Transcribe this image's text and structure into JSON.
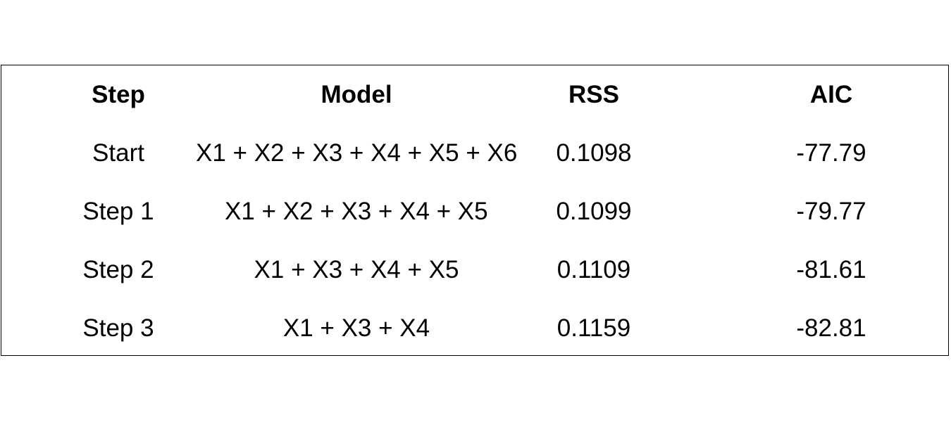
{
  "chart_data": {
    "type": "table",
    "columns": [
      "Step",
      "Model",
      "RSS",
      "AIC"
    ],
    "rows": [
      {
        "step": "Start",
        "model": "X1 + X2 + X3 + X4 + X5 + X6",
        "rss": "0.1098",
        "aic": "-77.79"
      },
      {
        "step": "Step 1",
        "model": "X1 + X2 + X3 + X4 + X5",
        "rss": "0.1099",
        "aic": "-79.77"
      },
      {
        "step": "Step 2",
        "model": "X1 + X3 + X4 + X5",
        "rss": "0.1109",
        "aic": "-81.61"
      },
      {
        "step": "Step 3",
        "model": "X1 + X3 + X4",
        "rss": "0.1159",
        "aic": "-82.81"
      }
    ]
  }
}
